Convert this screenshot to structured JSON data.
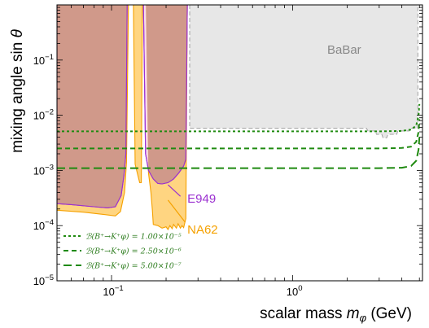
{
  "chart_data": {
    "type": "area",
    "title": "",
    "xlabel": "scalar mass",
    "xlabel_symbol": "m",
    "xlabel_subscript": "φ",
    "xlabel_unit": "(GeV)",
    "ylabel": "mixing angle sin",
    "ylabel_symbol": "θ",
    "xscale": "log",
    "yscale": "log",
    "xlim": [
      0.05,
      5.2
    ],
    "ylim": [
      1e-05,
      1.0
    ],
    "grid": false,
    "x_ticks": [
      {
        "value": 0.1,
        "base": "10",
        "exp": "−1"
      },
      {
        "value": 1,
        "base": "10",
        "exp": "0"
      }
    ],
    "y_ticks": [
      {
        "value": 1e-05,
        "base": "10",
        "exp": "−5"
      },
      {
        "value": 0.0001,
        "base": "10",
        "exp": "−4"
      },
      {
        "value": 0.001,
        "base": "10",
        "exp": "−3"
      },
      {
        "value": 0.01,
        "base": "10",
        "exp": "−2"
      },
      {
        "value": 0.1,
        "base": "10",
        "exp": "−1"
      }
    ],
    "regions": [
      {
        "name": "BaBar",
        "fill": "#e6e6e6",
        "edge": "#9a9a9a",
        "label_at": [
          1.55,
          0.13
        ],
        "label_color": "#888888",
        "boundary": [
          [
            0.27,
            1.0
          ],
          [
            0.27,
            0.0058
          ],
          [
            1.0,
            0.0058
          ],
          [
            2.0,
            0.0058
          ],
          [
            2.55,
            0.0058
          ],
          [
            2.6,
            0.0052
          ],
          [
            2.85,
            0.0052
          ],
          [
            2.9,
            0.0045
          ],
          [
            3.1,
            0.0045
          ],
          [
            3.15,
            0.0039
          ],
          [
            3.3,
            0.0039
          ],
          [
            3.35,
            0.0045
          ],
          [
            3.75,
            0.0045
          ],
          [
            3.8,
            0.0052
          ],
          [
            4.4,
            0.0052
          ],
          [
            4.45,
            0.0058
          ],
          [
            4.9,
            0.0058
          ],
          [
            4.9,
            1.0
          ]
        ]
      },
      {
        "name": "NA62",
        "fill": "#ffd37a",
        "edge": "#f5a100",
        "label_at": [
          0.262,
          7.2e-05
        ],
        "label_color": "#f5a100",
        "pointer": [
          [
            0.205,
            0.00029
          ],
          [
            0.255,
            0.000115
          ]
        ],
        "boundary": [
          [
            0.05,
            1.0
          ],
          [
            0.05,
            0.00019
          ],
          [
            0.07,
            0.000175
          ],
          [
            0.09,
            0.00016
          ],
          [
            0.105,
            0.00015
          ],
          [
            0.112,
            0.00018
          ],
          [
            0.118,
            0.0004
          ],
          [
            0.121,
            0.0014
          ],
          [
            0.124,
            1.0
          ],
          [
            0.132,
            1.0
          ],
          [
            0.135,
            0.0013
          ],
          [
            0.14,
            0.0008
          ],
          [
            0.143,
            0.0006
          ],
          [
            0.146,
            0.0006
          ],
          [
            0.148,
            1.0
          ],
          [
            0.155,
            1.0
          ],
          [
            0.16,
            0.0009
          ],
          [
            0.165,
            0.0004
          ],
          [
            0.168,
            0.00019
          ],
          [
            0.17,
            0.000105
          ],
          [
            0.18,
            0.0001
          ],
          [
            0.19,
            9e-05
          ],
          [
            0.2,
            9.5e-05
          ],
          [
            0.205,
            8.5e-05
          ],
          [
            0.21,
            0.0001
          ],
          [
            0.216,
            8.8e-05
          ],
          [
            0.22,
            0.000105
          ],
          [
            0.228,
            9e-05
          ],
          [
            0.233,
            0.000108
          ],
          [
            0.24,
            9e-05
          ],
          [
            0.245,
            0.0001
          ],
          [
            0.25,
            9.2e-05
          ],
          [
            0.257,
            0.000135
          ],
          [
            0.262,
            1.0
          ]
        ]
      },
      {
        "name": "E949",
        "fill": "#f5d0e8",
        "edge": "#9b30d0",
        "label_at": [
          0.262,
          0.00026
        ],
        "label_color": "#9b30d0",
        "pointer": [
          [
            0.205,
            0.00055
          ],
          [
            0.24,
            0.00034
          ]
        ],
        "boundary": [
          [
            0.05,
            1.0
          ],
          [
            0.05,
            0.00025
          ],
          [
            0.06,
            0.00024
          ],
          [
            0.08,
            0.00022
          ],
          [
            0.095,
            0.00021
          ],
          [
            0.105,
            0.00022
          ],
          [
            0.113,
            0.00035
          ],
          [
            0.117,
            0.0008
          ],
          [
            0.12,
            0.002
          ],
          [
            0.122,
            1.0
          ],
          [
            0.15,
            1.0
          ],
          [
            0.154,
            0.002
          ],
          [
            0.16,
            0.001
          ],
          [
            0.17,
            0.0007
          ],
          [
            0.18,
            0.00058
          ],
          [
            0.19,
            0.00057
          ],
          [
            0.205,
            0.0006
          ],
          [
            0.22,
            0.0007
          ],
          [
            0.235,
            0.0009
          ],
          [
            0.25,
            0.0012
          ],
          [
            0.257,
            0.0016
          ],
          [
            0.262,
            1.0
          ]
        ]
      }
    ],
    "series": [
      {
        "name": "1.00×10⁻⁵",
        "legend_text": "ℬ(B⁺→K⁺φ) = 1.00×10⁻⁵",
        "color": "#1f8a10",
        "dash": "3,3",
        "points": [
          [
            0.05,
            0.0051
          ],
          [
            1.0,
            0.0051
          ],
          [
            3.0,
            0.0051
          ],
          [
            4.0,
            0.0052
          ],
          [
            4.5,
            0.0055
          ],
          [
            4.8,
            0.0065
          ],
          [
            4.95,
            0.01
          ],
          [
            5.0,
            0.016
          ]
        ]
      },
      {
        "name": "2.50×10⁻⁶",
        "legend_text": "ℬ(B⁺→K⁺φ) = 2.50×10⁻⁶",
        "color": "#1f8a10",
        "dash": "6,4",
        "points": [
          [
            0.05,
            0.0025
          ],
          [
            1.0,
            0.0025
          ],
          [
            3.0,
            0.0025
          ],
          [
            4.0,
            0.00255
          ],
          [
            4.5,
            0.0027
          ],
          [
            4.8,
            0.0033
          ],
          [
            4.95,
            0.005
          ],
          [
            5.0,
            0.0085
          ]
        ]
      },
      {
        "name": "5.00×10⁻⁷",
        "legend_text": "ℬ(B⁺→K⁺φ) = 5.00×10⁻⁷",
        "color": "#1f8a10",
        "dash": "10,5",
        "points": [
          [
            0.05,
            0.0011
          ],
          [
            1.0,
            0.0011
          ],
          [
            3.0,
            0.0011
          ],
          [
            4.0,
            0.00112
          ],
          [
            4.5,
            0.0012
          ],
          [
            4.8,
            0.0015
          ],
          [
            4.95,
            0.0024
          ],
          [
            5.0,
            0.004
          ]
        ]
      }
    ],
    "legend_position": "bottom-left"
  }
}
